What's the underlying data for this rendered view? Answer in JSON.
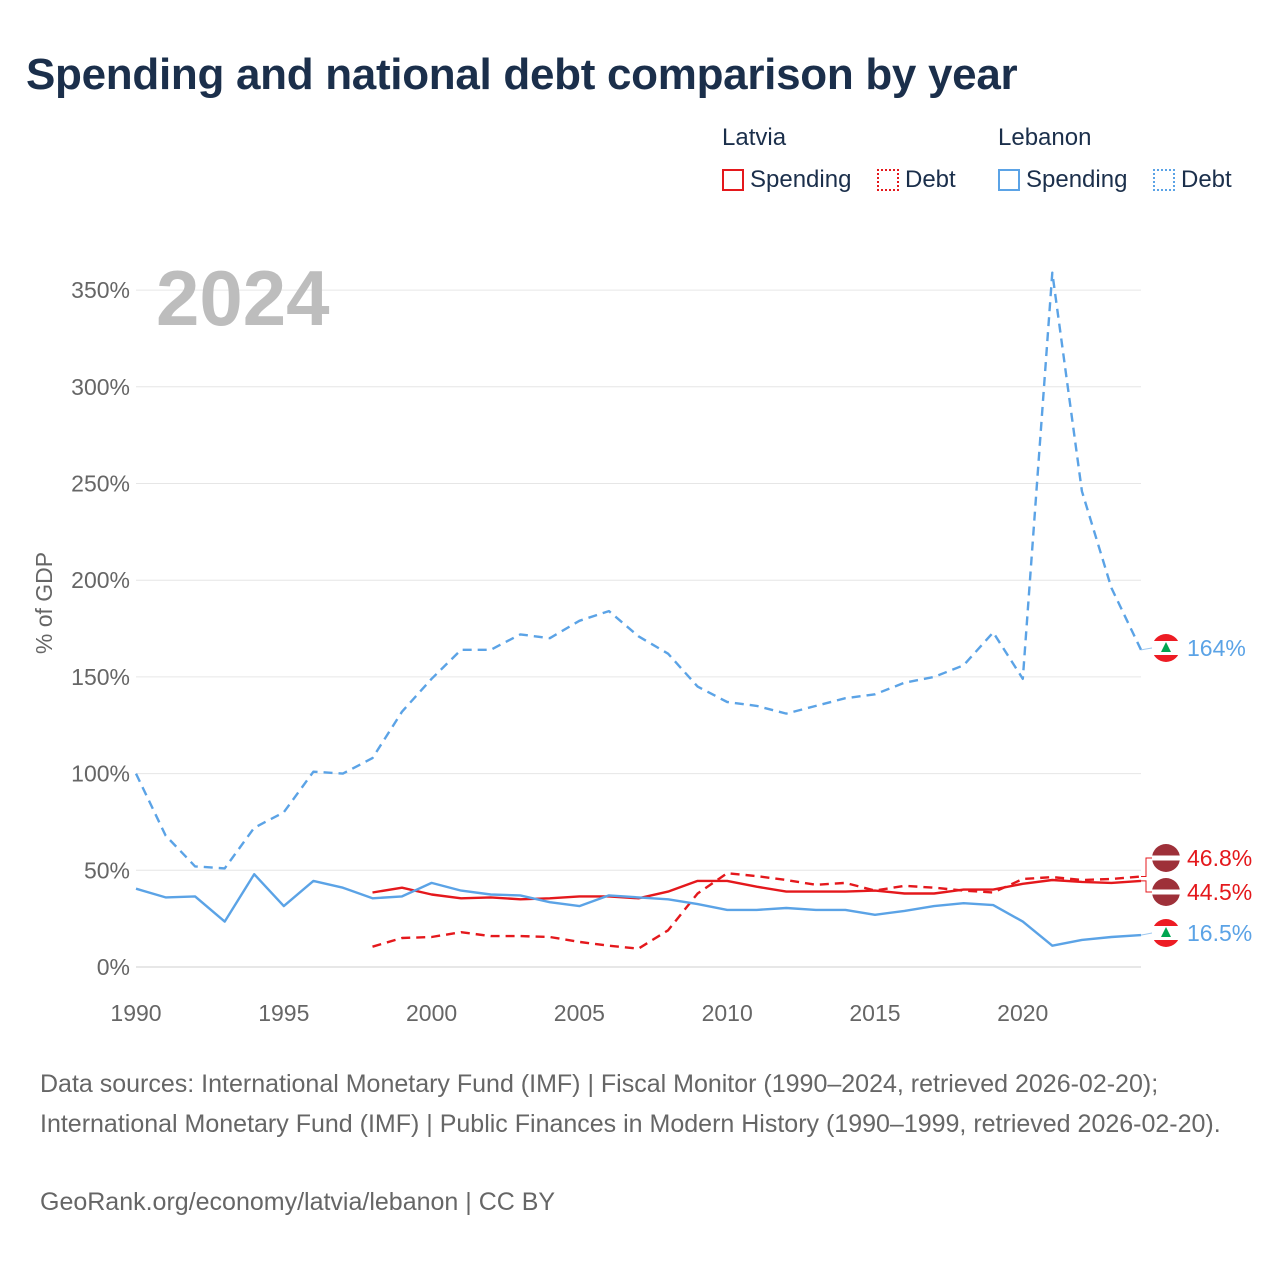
{
  "title": "Spending and national debt comparison by year",
  "legend": {
    "groups": [
      {
        "name": "Latvia",
        "color": "#e4181c",
        "items": [
          "Spending",
          "Debt"
        ]
      },
      {
        "name": "Lebanon",
        "color": "#5ba3e6",
        "items": [
          "Spending",
          "Debt"
        ]
      }
    ]
  },
  "footer": {
    "sources": "Data sources: International Monetary Fund (IMF) | Fiscal Monitor (1990–2024, retrieved 2026-02-20); International Monetary Fund (IMF) | Public Finances in Modern History (1990–1999, retrieved 2026-02-20).",
    "credit": "GeoRank.org/economy/latvia/lebanon | CC BY"
  },
  "chart_data": {
    "type": "line",
    "year_label": "2024",
    "ylabel": "% of GDP",
    "xlim": [
      1990,
      2024
    ],
    "ylim": [
      0,
      360
    ],
    "x_ticks": [
      1990,
      1995,
      2000,
      2005,
      2010,
      2015,
      2020
    ],
    "y_ticks": [
      0,
      50,
      100,
      150,
      200,
      250,
      300,
      350
    ],
    "y_tick_labels": [
      "0%",
      "50%",
      "100%",
      "150%",
      "200%",
      "250%",
      "300%",
      "350%"
    ],
    "series": [
      {
        "name": "Lebanon Debt",
        "country": "Lebanon",
        "metric": "Debt",
        "color": "#5ba3e6",
        "style": "dashed",
        "x": [
          1990,
          1991,
          1992,
          1993,
          1994,
          1995,
          1996,
          1997,
          1998,
          1999,
          2000,
          2001,
          2002,
          2003,
          2004,
          2005,
          2006,
          2007,
          2008,
          2009,
          2010,
          2011,
          2012,
          2013,
          2014,
          2015,
          2016,
          2017,
          2018,
          2019,
          2020,
          2021,
          2022,
          2023,
          2024
        ],
        "values": [
          100,
          68,
          52,
          51,
          72,
          80,
          101,
          100,
          108,
          132,
          149,
          164,
          164,
          172,
          170,
          179,
          184,
          171,
          162,
          145,
          137,
          135,
          131,
          135,
          139,
          141,
          147,
          150,
          156,
          173,
          149,
          359,
          246,
          196,
          164
        ]
      },
      {
        "name": "Latvia Debt",
        "country": "Latvia",
        "metric": "Debt",
        "color": "#e4181c",
        "style": "dashed",
        "x": [
          1998,
          1999,
          2000,
          2001,
          2002,
          2003,
          2004,
          2005,
          2006,
          2007,
          2008,
          2009,
          2010,
          2011,
          2012,
          2013,
          2014,
          2015,
          2016,
          2017,
          2018,
          2019,
          2020,
          2021,
          2022,
          2023,
          2024
        ],
        "values": [
          10.5,
          15,
          15.5,
          18,
          16,
          16,
          15.5,
          13,
          11,
          9.5,
          19,
          38,
          48.5,
          47,
          45,
          42.5,
          43.5,
          39.5,
          42,
          41,
          39.5,
          38.5,
          45.5,
          46.5,
          45,
          45.5,
          46.8
        ]
      },
      {
        "name": "Latvia Spending",
        "country": "Latvia",
        "metric": "Spending",
        "color": "#e4181c",
        "style": "solid",
        "x": [
          1998,
          1999,
          2000,
          2001,
          2002,
          2003,
          2004,
          2005,
          2006,
          2007,
          2008,
          2009,
          2010,
          2011,
          2012,
          2013,
          2014,
          2015,
          2016,
          2017,
          2018,
          2019,
          2020,
          2021,
          2022,
          2023,
          2024
        ],
        "values": [
          38.5,
          41,
          37.5,
          35.5,
          36,
          35,
          35.5,
          36.5,
          36.5,
          35.5,
          39,
          44.5,
          44.5,
          41.5,
          39,
          39,
          39,
          39.5,
          38,
          38,
          40,
          40,
          43,
          45,
          44,
          43.5,
          44.5
        ]
      },
      {
        "name": "Lebanon Spending",
        "country": "Lebanon",
        "metric": "Spending",
        "color": "#5ba3e6",
        "style": "solid",
        "x": [
          1990,
          1991,
          1992,
          1993,
          1994,
          1995,
          1996,
          1997,
          1998,
          1999,
          2000,
          2001,
          2002,
          2003,
          2004,
          2005,
          2006,
          2007,
          2008,
          2009,
          2010,
          2011,
          2012,
          2013,
          2014,
          2015,
          2016,
          2017,
          2018,
          2019,
          2020,
          2021,
          2022,
          2023,
          2024
        ],
        "values": [
          40.5,
          36,
          36.5,
          23.5,
          48,
          31.5,
          44.5,
          41,
          35.5,
          36.5,
          43.5,
          39.5,
          37.5,
          37,
          33.5,
          31.5,
          37,
          36,
          35,
          32.5,
          29.5,
          29.5,
          30.5,
          29.5,
          29.5,
          27,
          29,
          31.5,
          33,
          32,
          23.5,
          11,
          14,
          15.5,
          16.5
        ]
      }
    ],
    "end_labels": [
      {
        "text": "164%",
        "value": 164,
        "country": "Lebanon",
        "color": "#5ba3e6"
      },
      {
        "text": "46.8%",
        "value": 46.8,
        "country": "Latvia",
        "color": "#e4181c"
      },
      {
        "text": "44.5%",
        "value": 44.5,
        "country": "Latvia",
        "color": "#e4181c"
      },
      {
        "text": "16.5%",
        "value": 16.5,
        "country": "Lebanon",
        "color": "#5ba3e6"
      }
    ]
  }
}
